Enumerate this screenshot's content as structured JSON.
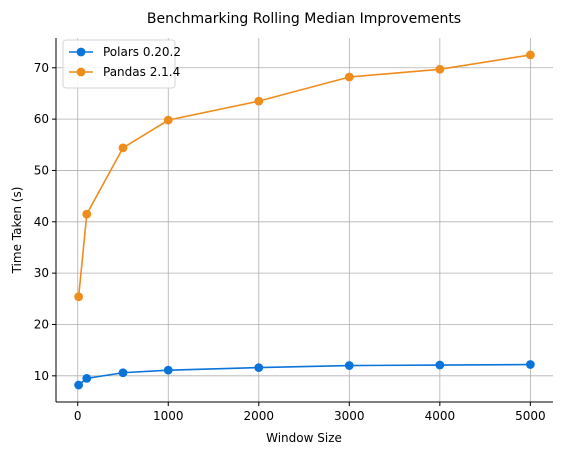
{
  "chart_data": {
    "type": "line",
    "title": "Benchmarking Rolling Median Improvements",
    "xlabel": "Window Size",
    "ylabel": "Time Taken (s)",
    "x": [
      10,
      100,
      500,
      1000,
      2000,
      3000,
      4000,
      5000
    ],
    "series": [
      {
        "name": "Polars 0.20.2",
        "color": "#0a74da",
        "values": [
          8.2,
          9.5,
          10.6,
          11.1,
          11.6,
          12.0,
          12.1,
          12.2
        ]
      },
      {
        "name": "Pandas 2.1.4",
        "color": "#ef8c1c",
        "values": [
          25.4,
          41.5,
          54.4,
          59.8,
          63.5,
          68.2,
          69.7,
          72.5
        ]
      }
    ],
    "xticks": [
      0,
      1000,
      2000,
      3000,
      4000,
      5000
    ],
    "yticks": [
      10,
      20,
      30,
      40,
      50,
      60,
      70
    ],
    "xlim": [
      -240,
      5250
    ],
    "ylim": [
      4.9,
      75.8
    ],
    "grid": true,
    "legend_position": "top-left"
  }
}
